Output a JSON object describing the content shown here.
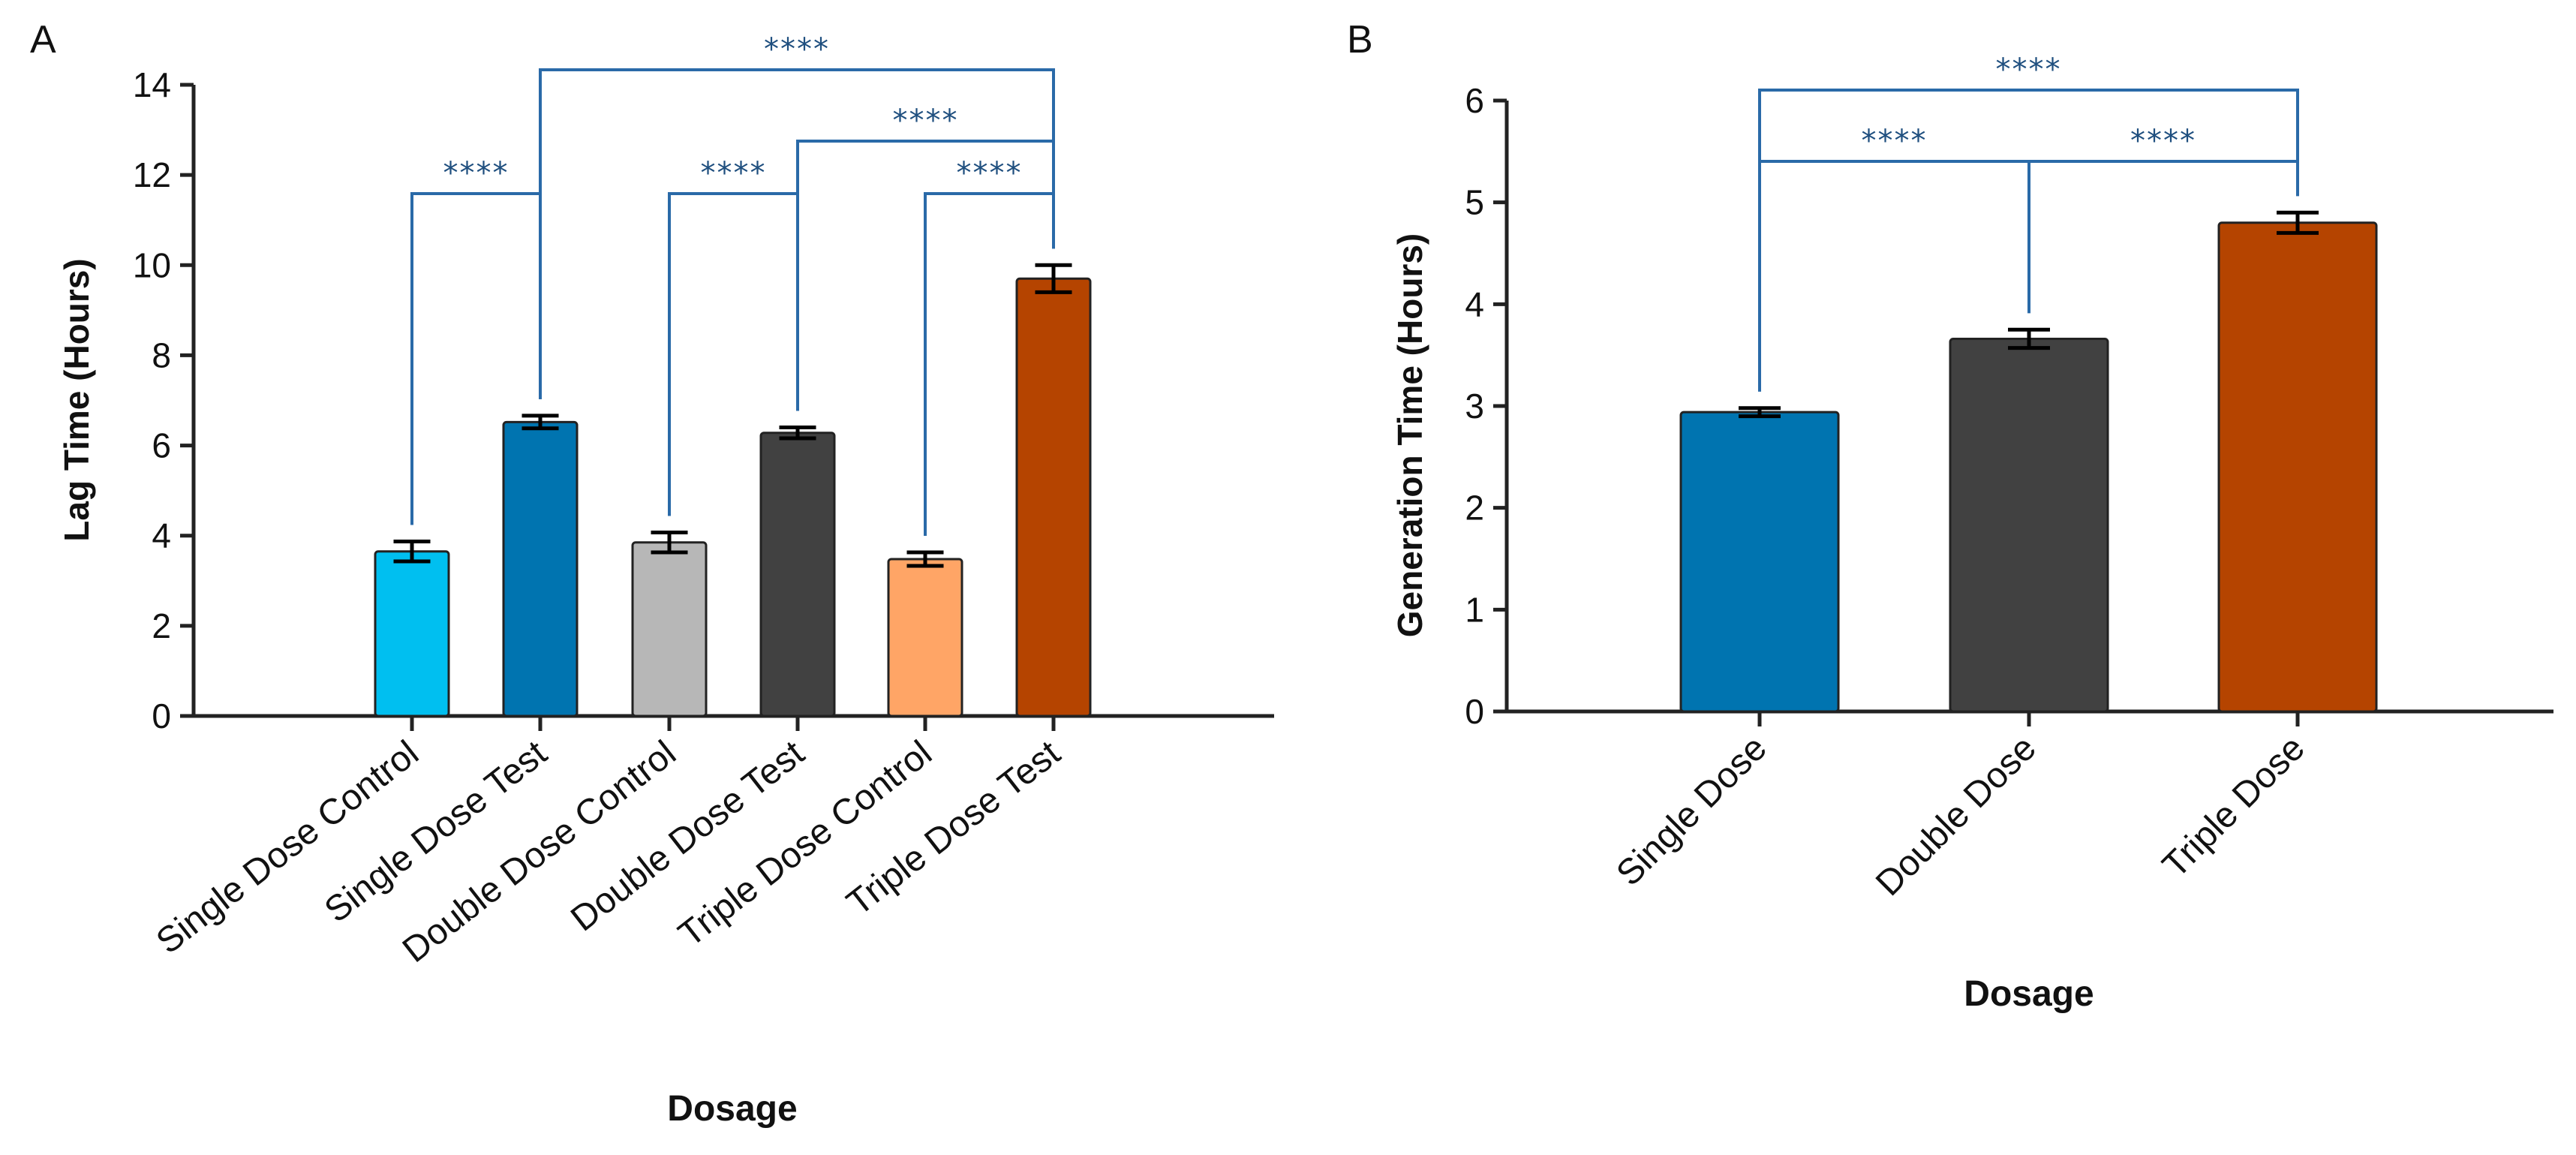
{
  "chart_data": [
    {
      "type": "bar",
      "panel": "A",
      "title": "",
      "xlabel": "Dosage",
      "ylabel": "Lag Time (Hours)",
      "ylim": [
        0,
        14
      ],
      "yticks": [
        0,
        2,
        4,
        6,
        8,
        10,
        12,
        14
      ],
      "categories": [
        "Single Dose Control",
        "Single Dose Test",
        "Double Dose Control",
        "Double Dose Test",
        "Triple Dose Control",
        "Triple Dose Test"
      ],
      "values": [
        3.65,
        6.52,
        3.85,
        6.28,
        3.48,
        9.7
      ],
      "errors": [
        0.22,
        0.14,
        0.22,
        0.12,
        0.15,
        0.3
      ],
      "colors": [
        "#00bff0",
        "#0074b0",
        "#b7b7b7",
        "#414141",
        "#ffa566",
        "#b54400"
      ],
      "significance": [
        {
          "from": 0,
          "to": 1,
          "label": "****"
        },
        {
          "from": 2,
          "to": 3,
          "label": "****"
        },
        {
          "from": 4,
          "to": 5,
          "label": "****"
        },
        {
          "from": 3,
          "to": 5,
          "label": "****"
        },
        {
          "from": 1,
          "to": 5,
          "label": "****"
        }
      ]
    },
    {
      "type": "bar",
      "panel": "B",
      "title": "",
      "xlabel": "Dosage",
      "ylabel": "Generation Time (Hours)",
      "ylim": [
        0,
        6
      ],
      "yticks": [
        0,
        1,
        2,
        3,
        4,
        5,
        6
      ],
      "categories": [
        "Single Dose",
        "Double Dose",
        "Triple Dose"
      ],
      "values": [
        2.94,
        3.66,
        4.8
      ],
      "errors": [
        0.04,
        0.09,
        0.1
      ],
      "colors": [
        "#0074b0",
        "#414141",
        "#b54400"
      ],
      "significance": [
        {
          "from": 0,
          "to": 1,
          "label": "****"
        },
        {
          "from": 1,
          "to": 2,
          "label": "****"
        },
        {
          "from": 0,
          "to": 2,
          "label": "****"
        }
      ]
    }
  ]
}
